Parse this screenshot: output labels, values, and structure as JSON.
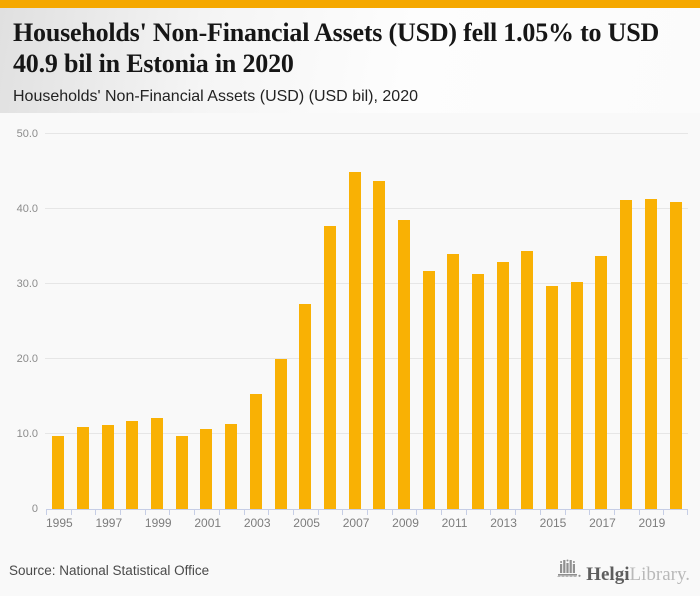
{
  "page": {
    "accent_color": "#F9B104",
    "stripe_color": "#F5A800",
    "background_color": "#f9f9f9",
    "axis_color": "#c6cee6",
    "gridline_color": "#e6e6e6"
  },
  "header": {
    "title": "Households' Non-Financial Assets (USD) fell 1.05% to USD 40.9 bil in Estonia in 2020",
    "subtitle": "Households' Non-Financial Assets (USD) (USD bil), 2020"
  },
  "chart_data": {
    "type": "bar",
    "title": "Households' Non-Financial Assets (USD) (USD bil), 2020",
    "categories": [
      "1995",
      "1996",
      "1997",
      "1998",
      "1999",
      "2000",
      "2001",
      "2002",
      "2003",
      "2004",
      "2005",
      "2006",
      "2007",
      "2008",
      "2009",
      "2010",
      "2011",
      "2012",
      "2013",
      "2014",
      "2015",
      "2016",
      "2017",
      "2018",
      "2019",
      "2020"
    ],
    "values": [
      9.8,
      10.9,
      11.2,
      11.7,
      12.2,
      9.8,
      10.7,
      11.4,
      15.4,
      20.0,
      27.3,
      37.8,
      44.9,
      43.8,
      38.5,
      31.8,
      34.0,
      31.4,
      32.9,
      34.4,
      29.7,
      30.3,
      33.7,
      41.2,
      41.3,
      40.9
    ],
    "bar_color": "#F9B104",
    "xlabel": "",
    "ylabel": "",
    "ylim": [
      0,
      50
    ],
    "ytick_values": [
      50,
      40,
      30,
      20,
      10,
      0
    ],
    "ytick_labels": [
      "50.0",
      "40.0",
      "30.0",
      "20.0",
      "10.0",
      "0"
    ],
    "x_label_every": 2,
    "grid": true,
    "legend": "none"
  },
  "footer": {
    "source_label": "Source: National Statistical Office",
    "logo": {
      "icon": "helgi-bars-logo-icon",
      "brand_bold": "Helgi",
      "brand_light": "Library."
    }
  }
}
